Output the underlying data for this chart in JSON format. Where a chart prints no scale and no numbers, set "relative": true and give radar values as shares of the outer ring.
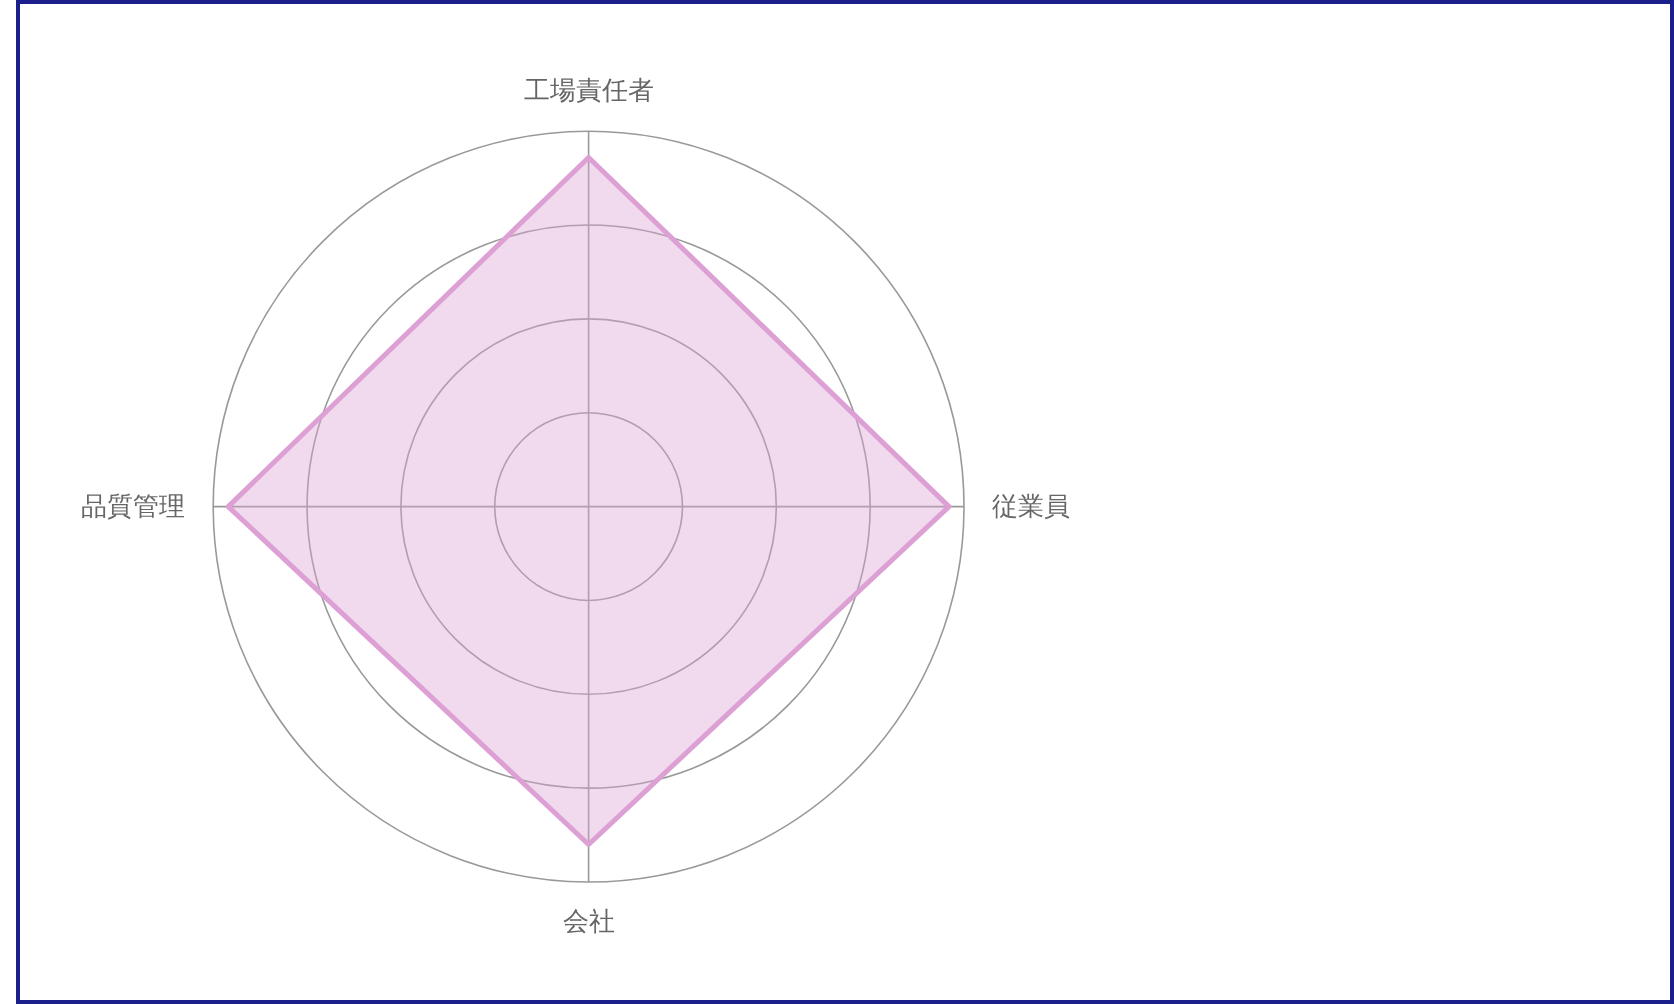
{
  "chart_data": {
    "type": "radar",
    "relative": true,
    "grid": true,
    "categories": [
      "工場責任者",
      "従業員",
      "会社",
      "品質管理"
    ],
    "series": [
      {
        "color": "#dda0d4",
        "values": [
          0.93,
          0.96,
          0.9,
          0.96
        ]
      }
    ]
  }
}
